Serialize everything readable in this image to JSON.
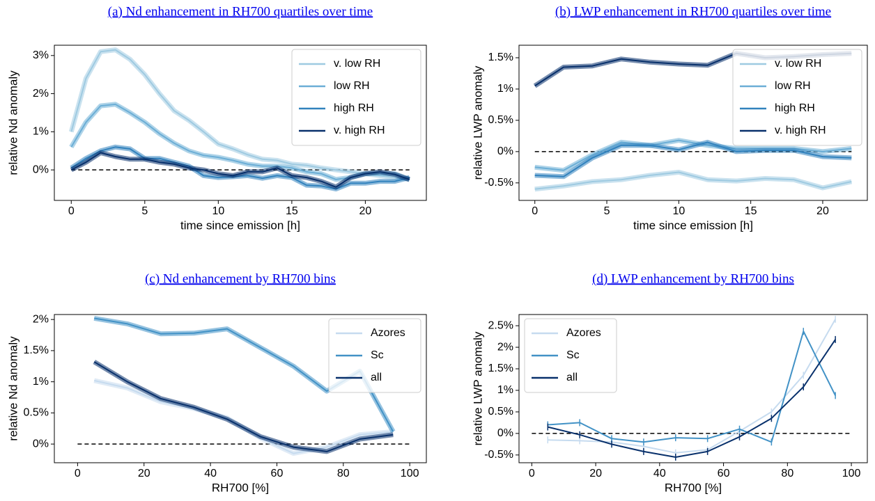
{
  "chart_data": [
    {
      "type": "line",
      "title": "(a) Nd enhancement in RH700 quartiles over time",
      "xlabel": "time since emission [h]",
      "ylabel": "relative Nd anomaly",
      "x": [
        0,
        1,
        2,
        3,
        4,
        5,
        6,
        7,
        8,
        9,
        10,
        11,
        12,
        13,
        14,
        15,
        16,
        17,
        18,
        19,
        20,
        21,
        22,
        23
      ],
      "series": [
        {
          "name": "v. low RH",
          "color": "#9ecae1",
          "values": [
            1.0,
            2.4,
            3.1,
            3.15,
            2.9,
            2.5,
            2.0,
            1.55,
            1.3,
            1.0,
            0.68,
            0.55,
            0.4,
            0.28,
            0.25,
            0.15,
            0.12,
            0.05,
            0.0,
            -0.05,
            -0.1,
            -0.15,
            -0.2,
            -0.25
          ]
        },
        {
          "name": "low RH",
          "color": "#6baed6",
          "values": [
            0.6,
            1.25,
            1.68,
            1.72,
            1.5,
            1.25,
            0.95,
            0.7,
            0.5,
            0.38,
            0.33,
            0.25,
            0.15,
            0.1,
            0.1,
            0.05,
            -0.05,
            -0.1,
            -0.25,
            -0.2,
            -0.1,
            -0.1,
            -0.1,
            -0.25
          ]
        },
        {
          "name": "high RH",
          "color": "#3182bd",
          "values": [
            0.05,
            0.3,
            0.5,
            0.6,
            0.55,
            0.3,
            0.3,
            0.2,
            0.1,
            -0.15,
            -0.2,
            -0.18,
            -0.15,
            -0.22,
            -0.15,
            -0.2,
            -0.4,
            -0.42,
            -0.5,
            -0.35,
            -0.35,
            -0.3,
            -0.3,
            -0.2
          ]
        },
        {
          "name": "v. high RH",
          "color": "#08306b",
          "values": [
            0.0,
            0.2,
            0.45,
            0.35,
            0.28,
            0.28,
            0.2,
            0.15,
            0.05,
            0.0,
            -0.1,
            -0.15,
            -0.05,
            -0.05,
            0.05,
            -0.15,
            -0.2,
            -0.3,
            -0.45,
            -0.2,
            -0.1,
            -0.05,
            -0.12,
            -0.25
          ]
        }
      ],
      "xlim": [
        -1.15,
        24.15
      ],
      "ylim": [
        -0.8,
        3.27
      ],
      "xticks": [
        0,
        5,
        10,
        15,
        20
      ],
      "yticks": [
        {
          "value": 0,
          "label": "0%"
        },
        {
          "value": 1,
          "label": "1%"
        },
        {
          "value": 2,
          "label": "2%"
        },
        {
          "value": 3,
          "label": "3%"
        }
      ],
      "hline": {
        "y": 0,
        "x": [
          0,
          23
        ]
      },
      "legend": "upper right",
      "bands": true
    },
    {
      "type": "line",
      "title": "(b) LWP enhancement in RH700 quartiles over time",
      "xlabel": "time since emission [h]",
      "ylabel": "relative LWP anomaly",
      "x": [
        0,
        2,
        4,
        6,
        8,
        10,
        12,
        14,
        16,
        18,
        20,
        22
      ],
      "series": [
        {
          "name": "v. low RH",
          "color": "#9ecae1",
          "values": [
            -0.6,
            -0.55,
            -0.48,
            -0.45,
            -0.38,
            -0.33,
            -0.45,
            -0.47,
            -0.43,
            -0.45,
            -0.58,
            -0.48
          ]
        },
        {
          "name": "low RH",
          "color": "#6baed6",
          "values": [
            -0.25,
            -0.3,
            -0.05,
            0.15,
            0.1,
            0.18,
            0.1,
            0.05,
            0.05,
            0.05,
            0.0,
            0.05
          ]
        },
        {
          "name": "high RH",
          "color": "#3182bd",
          "values": [
            -0.38,
            -0.4,
            -0.1,
            0.1,
            0.1,
            0.03,
            0.15,
            0.0,
            0.02,
            0.02,
            -0.08,
            -0.1
          ]
        },
        {
          "name": "v. high RH",
          "color": "#08306b",
          "values": [
            1.05,
            1.35,
            1.37,
            1.48,
            1.43,
            1.4,
            1.38,
            1.57,
            1.5,
            1.52,
            1.55,
            1.57
          ]
        }
      ],
      "xlim": [
        -1.1,
        23.1
      ],
      "ylim": [
        -0.78,
        1.7
      ],
      "xticks": [
        0,
        5,
        10,
        15,
        20
      ],
      "yticks": [
        {
          "value": -0.5,
          "label": "-0.5%"
        },
        {
          "value": 0,
          "label": "0%"
        },
        {
          "value": 0.5,
          "label": "0.5%"
        },
        {
          "value": 1,
          "label": "1%"
        },
        {
          "value": 1.5,
          "label": "1.5%"
        }
      ],
      "hline": {
        "y": 0,
        "x": [
          0,
          22
        ]
      },
      "legend": "upper right",
      "bands": true
    },
    {
      "type": "line",
      "title": "(c) Nd enhancement by RH700 bins",
      "xlabel": "RH700 [%]",
      "ylabel": "relative Nd anomaly",
      "x": [
        5,
        15,
        25,
        35,
        45,
        55,
        65,
        75,
        85,
        95
      ],
      "series": [
        {
          "name": "Azores",
          "color": "#c6dbef",
          "values": [
            1.02,
            0.9,
            0.68,
            0.57,
            0.42,
            0.1,
            -0.15,
            -0.05,
            0.15,
            0.2
          ]
        },
        {
          "name": "Sc",
          "color": "#4292c6",
          "values": [
            2.02,
            1.93,
            1.77,
            1.78,
            1.85,
            1.55,
            1.25,
            0.85,
            1.17,
            0.2
          ]
        },
        {
          "name": "all",
          "color": "#08306b",
          "values": [
            1.32,
            1.0,
            0.73,
            0.59,
            0.4,
            0.12,
            -0.05,
            -0.12,
            0.08,
            0.15
          ]
        }
      ],
      "xlim": [
        -7,
        105
      ],
      "ylim": [
        -0.3,
        2.08
      ],
      "xticks": [
        0,
        20,
        40,
        60,
        80,
        100
      ],
      "yticks": [
        {
          "value": 0,
          "label": "0%"
        },
        {
          "value": 0.5,
          "label": "0.5%"
        },
        {
          "value": 1,
          "label": "1%"
        },
        {
          "value": 1.5,
          "label": "1.5%"
        },
        {
          "value": 2,
          "label": "2%"
        }
      ],
      "hline": {
        "y": 0,
        "x": [
          0,
          100
        ]
      },
      "legend": "upper right",
      "bands": true
    },
    {
      "type": "line",
      "title": "(d) LWP enhancement by RH700 bins",
      "xlabel": "RH700 [%]",
      "ylabel": "relative LWP anomaly",
      "x": [
        5,
        15,
        25,
        35,
        45,
        55,
        65,
        75,
        85,
        95
      ],
      "series": [
        {
          "name": "Azores",
          "color": "#c6dbef",
          "values": [
            -0.15,
            -0.17,
            -0.2,
            -0.3,
            -0.45,
            -0.38,
            0.05,
            0.5,
            1.35,
            2.65
          ]
        },
        {
          "name": "Sc",
          "color": "#4292c6",
          "values": [
            0.2,
            0.25,
            -0.12,
            -0.2,
            -0.1,
            -0.12,
            0.1,
            -0.2,
            2.37,
            0.88
          ]
        },
        {
          "name": "all",
          "color": "#08306b",
          "values": [
            0.15,
            -0.03,
            -0.25,
            -0.42,
            -0.55,
            -0.42,
            -0.08,
            0.35,
            1.08,
            2.18
          ]
        }
      ],
      "xlim": [
        -4,
        105
      ],
      "ylim": [
        -0.68,
        2.76
      ],
      "xticks": [
        0,
        20,
        40,
        60,
        80,
        100
      ],
      "yticks": [
        {
          "value": -0.5,
          "label": "-0.5%"
        },
        {
          "value": 0,
          "label": "0%"
        },
        {
          "value": 0.5,
          "label": "0.5%"
        },
        {
          "value": 1,
          "label": "1%"
        },
        {
          "value": 1.5,
          "label": "1.5%"
        },
        {
          "value": 2,
          "label": "2%"
        },
        {
          "value": 2.5,
          "label": "2.5%"
        }
      ],
      "hline": {
        "y": 0,
        "x": [
          0,
          100
        ]
      },
      "legend": "upper left",
      "bands": false
    }
  ]
}
